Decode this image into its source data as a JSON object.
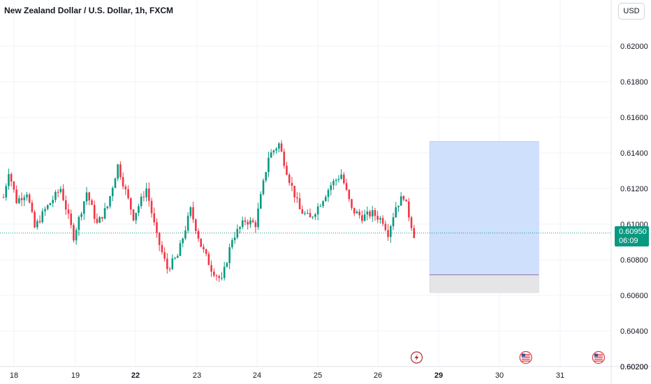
{
  "header": {
    "title": "New Zealand Dollar / U.S. Dollar, 1h, FXCM",
    "currency_button": "USD"
  },
  "last_price": {
    "value": "0.60950",
    "countdown": "06:09"
  },
  "colors": {
    "up": "#089981",
    "down": "#f23645",
    "range_box": "#c7dafc",
    "stop_box": "#e5e5e8",
    "grid": "#f0f3fa",
    "axis_text": "#131722"
  },
  "chart_data": {
    "type": "candlestick",
    "title": "New Zealand Dollar / U.S. Dollar, 1h, FXCM",
    "y_axis": {
      "ticks": [
        "0.62000",
        "0.61800",
        "0.61600",
        "0.61400",
        "0.61200",
        "0.61000",
        "0.60800",
        "0.60600",
        "0.60400",
        "0.60200"
      ],
      "range": [
        0.602,
        0.6225
      ]
    },
    "x_axis": {
      "ticks": [
        {
          "label": "18",
          "bold": false
        },
        {
          "label": "19",
          "bold": false
        },
        {
          "label": "22",
          "bold": true
        },
        {
          "label": "23",
          "bold": false
        },
        {
          "label": "24",
          "bold": false
        },
        {
          "label": "25",
          "bold": false
        },
        {
          "label": "26",
          "bold": false
        },
        {
          "label": "29",
          "bold": true
        },
        {
          "label": "30",
          "bold": false
        },
        {
          "label": "31",
          "bold": false
        }
      ]
    },
    "price_line": 0.6095,
    "anchors": [
      [
        0,
        0.6115
      ],
      [
        2,
        0.613
      ],
      [
        5,
        0.6113
      ],
      [
        9,
        0.6118
      ],
      [
        12,
        0.6098
      ],
      [
        16,
        0.6108
      ],
      [
        22,
        0.612
      ],
      [
        27,
        0.6093
      ],
      [
        32,
        0.6118
      ],
      [
        36,
        0.61
      ],
      [
        40,
        0.611
      ],
      [
        44,
        0.6133
      ],
      [
        50,
        0.6104
      ],
      [
        55,
        0.612
      ],
      [
        59,
        0.6093
      ],
      [
        63,
        0.6075
      ],
      [
        67,
        0.6082
      ],
      [
        72,
        0.6108
      ],
      [
        76,
        0.6088
      ],
      [
        80,
        0.6075
      ],
      [
        84,
        0.6068
      ],
      [
        88,
        0.6092
      ],
      [
        93,
        0.6102
      ],
      [
        97,
        0.61
      ],
      [
        102,
        0.6138
      ],
      [
        106,
        0.6145
      ],
      [
        110,
        0.6125
      ],
      [
        114,
        0.6108
      ],
      [
        118,
        0.6103
      ],
      [
        122,
        0.6112
      ],
      [
        126,
        0.6122
      ],
      [
        130,
        0.6128
      ],
      [
        134,
        0.6108
      ],
      [
        138,
        0.6104
      ],
      [
        142,
        0.6106
      ],
      [
        146,
        0.6102
      ],
      [
        148,
        0.6095
      ],
      [
        151,
        0.611
      ],
      [
        154,
        0.6116
      ],
      [
        158,
        0.6094
      ]
    ],
    "range_box": {
      "start_index": 164,
      "end_index": 206,
      "top": 0.61465,
      "entry": 0.60715,
      "bottom": 0.60615
    },
    "event_markers": [
      {
        "index": 159,
        "type": "lightning-icon"
      },
      {
        "index": 201,
        "type": "us-flag-icon"
      },
      {
        "index": 229,
        "type": "us-flag-icon"
      }
    ]
  }
}
